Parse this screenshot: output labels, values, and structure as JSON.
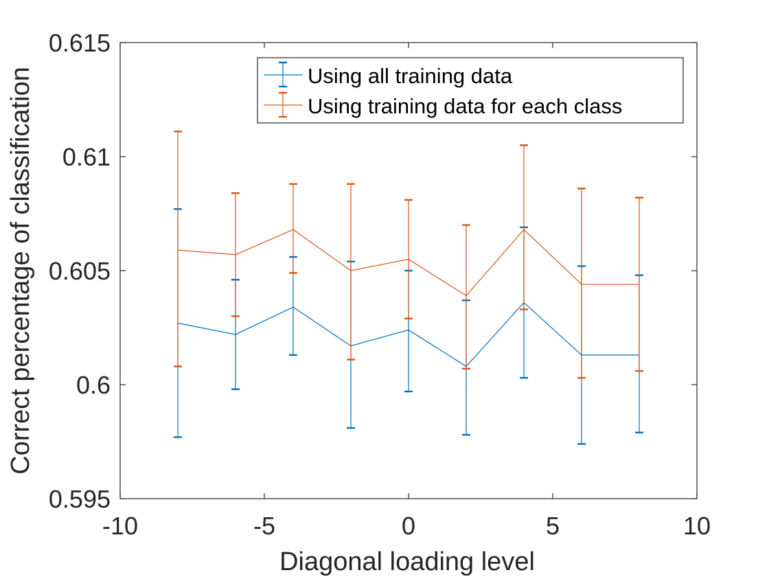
{
  "chart_data": {
    "type": "line",
    "error_bars": true,
    "xlabel": "Diagonal loading level",
    "ylabel": "Correct percentage of classification",
    "xlim": [
      -10,
      10
    ],
    "ylim": [
      0.595,
      0.615
    ],
    "x_ticks": [
      -10,
      -5,
      0,
      5,
      10
    ],
    "x_tick_labels": [
      "-10",
      "-5",
      "0",
      "5",
      "10"
    ],
    "y_ticks": [
      0.595,
      0.6,
      0.605,
      0.61,
      0.615
    ],
    "y_tick_labels": [
      "0.595",
      "0.6",
      "0.605",
      "0.61",
      "0.615"
    ],
    "grid": false,
    "legend_position": "top-right",
    "x": [
      -8,
      -6,
      -4,
      -2,
      0,
      2,
      4,
      6,
      8
    ],
    "series": [
      {
        "name": "Using all training data",
        "color": "#0072BD",
        "values": [
          0.6027,
          0.6022,
          0.6034,
          0.6017,
          0.6024,
          0.6008,
          0.6036,
          0.6013,
          0.6013
        ],
        "lower": [
          0.5977,
          0.5998,
          0.6013,
          0.5981,
          0.5997,
          0.5978,
          0.6003,
          0.5974,
          0.5979
        ],
        "upper": [
          0.6077,
          0.6046,
          0.6056,
          0.6054,
          0.605,
          0.6037,
          0.6069,
          0.6052,
          0.6048
        ]
      },
      {
        "name": "Using training data for each class",
        "color": "#D95319",
        "values": [
          0.6059,
          0.6057,
          0.6068,
          0.605,
          0.6055,
          0.6039,
          0.6068,
          0.6044,
          0.6044
        ],
        "lower": [
          0.6008,
          0.603,
          0.6049,
          0.6011,
          0.6029,
          0.6007,
          0.6033,
          0.6003,
          0.6006
        ],
        "upper": [
          0.6111,
          0.6084,
          0.6088,
          0.6088,
          0.6081,
          0.607,
          0.6105,
          0.6086,
          0.6082
        ]
      }
    ]
  }
}
